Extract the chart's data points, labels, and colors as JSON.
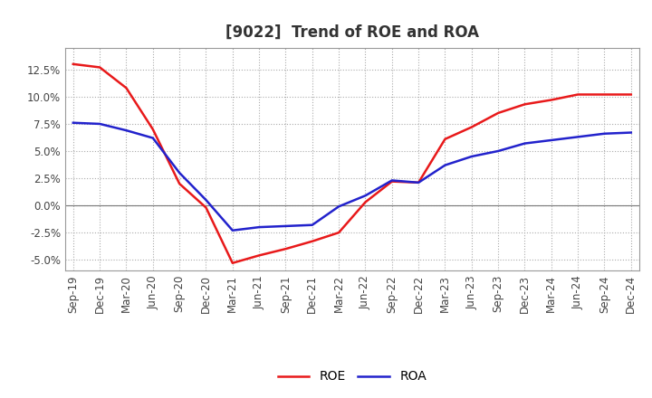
{
  "title": "[9022]  Trend of ROE and ROA",
  "x_labels": [
    "Sep-19",
    "Dec-19",
    "Mar-20",
    "Jun-20",
    "Sep-20",
    "Dec-20",
    "Mar-21",
    "Jun-21",
    "Sep-21",
    "Dec-21",
    "Mar-22",
    "Jun-22",
    "Sep-22",
    "Dec-22",
    "Mar-23",
    "Jun-23",
    "Sep-23",
    "Dec-23",
    "Mar-24",
    "Jun-24",
    "Sep-24",
    "Dec-24"
  ],
  "ROE": [
    13.0,
    12.7,
    10.8,
    7.0,
    2.0,
    -0.2,
    -5.3,
    -4.6,
    -4.0,
    -3.3,
    -2.5,
    0.3,
    2.2,
    2.1,
    6.1,
    7.2,
    8.5,
    9.3,
    9.7,
    10.2,
    10.2,
    10.2
  ],
  "ROA": [
    7.6,
    7.5,
    6.9,
    6.2,
    3.0,
    0.5,
    -2.3,
    -2.0,
    -1.9,
    -1.8,
    -0.1,
    0.9,
    2.3,
    2.1,
    3.7,
    4.5,
    5.0,
    5.7,
    6.0,
    6.3,
    6.6,
    6.7
  ],
  "roe_color": "#e8191a",
  "roa_color": "#2222cc",
  "ylim": [
    -6.0,
    14.5
  ],
  "yticks": [
    -5.0,
    -2.5,
    0.0,
    2.5,
    5.0,
    7.5,
    10.0,
    12.5
  ],
  "background_color": "#ffffff",
  "grid_color": "#aaaaaa",
  "title_fontsize": 12,
  "title_color": "#333333",
  "axis_fontsize": 8.5,
  "legend_fontsize": 10
}
